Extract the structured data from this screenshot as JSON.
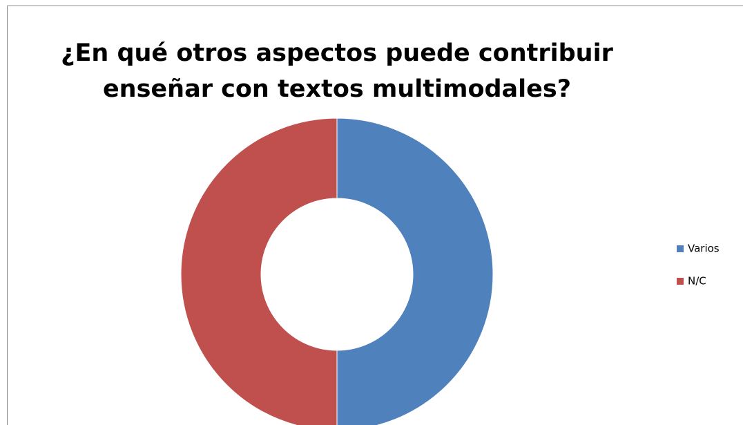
{
  "chart_data": {
    "type": "donut",
    "title": [
      "¿En qué otros aspectos puede contribuir",
      "enseñar con textos multimodales?"
    ],
    "categories": [
      "Varios",
      "N/C"
    ],
    "values": [
      50,
      50
    ],
    "colors": [
      "#4f81bd",
      "#c0504d"
    ],
    "legend": "right"
  }
}
